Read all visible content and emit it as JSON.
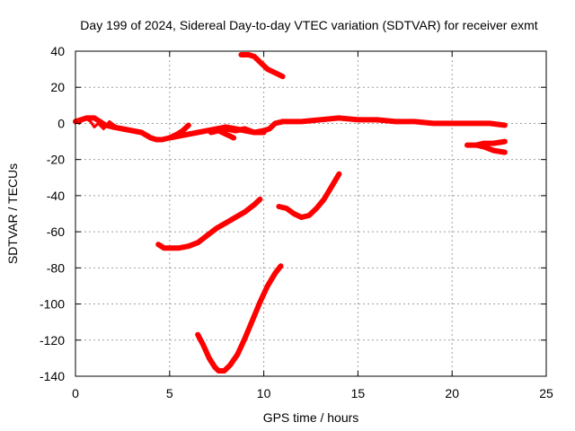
{
  "chart_data": {
    "type": "line",
    "title": "Day 199 of 2024, Sidereal Day-to-day VTEC variation (SDTVAR) for receiver exmt",
    "xlabel": "GPS time / hours",
    "ylabel": "SDTVAR / TECUs",
    "xlim": [
      0,
      25
    ],
    "ylim": [
      -140,
      40
    ],
    "xticks": [
      0,
      5,
      10,
      15,
      20,
      25
    ],
    "yticks": [
      -140,
      -120,
      -100,
      -80,
      -60,
      -40,
      -20,
      0,
      20,
      40
    ],
    "grid": true,
    "color": "#ff0000",
    "series": [
      {
        "name": "near-zero track (start)",
        "points": [
          [
            0.0,
            1
          ],
          [
            0.3,
            2
          ],
          [
            0.6,
            3
          ],
          [
            1.0,
            3
          ],
          [
            1.3,
            1
          ],
          [
            1.6,
            -1
          ],
          [
            2.0,
            -2
          ],
          [
            2.5,
            -3
          ],
          [
            3.0,
            -4
          ],
          [
            3.5,
            -5
          ],
          [
            4.0,
            -8
          ],
          [
            4.3,
            -9
          ],
          [
            4.6,
            -9
          ],
          [
            5.0,
            -8
          ],
          [
            5.5,
            -7
          ],
          [
            6.0,
            -6
          ],
          [
            6.5,
            -5
          ],
          [
            7.0,
            -4
          ],
          [
            7.5,
            -3
          ],
          [
            8.0,
            -2
          ],
          [
            8.5,
            -3
          ],
          [
            9.0,
            -4
          ],
          [
            9.5,
            -5
          ],
          [
            10.0,
            -4
          ],
          [
            10.3,
            -3
          ],
          [
            10.6,
            0
          ],
          [
            11.0,
            1
          ]
        ]
      },
      {
        "name": "near-zero track (continued)",
        "points": [
          [
            11.0,
            1
          ],
          [
            12.0,
            1
          ],
          [
            13.0,
            2
          ],
          [
            14.0,
            3
          ],
          [
            15.0,
            2
          ],
          [
            16.0,
            2
          ],
          [
            17.0,
            1
          ],
          [
            18.0,
            1
          ],
          [
            19.0,
            0
          ],
          [
            20.0,
            0
          ],
          [
            21.0,
            0
          ],
          [
            22.0,
            0
          ],
          [
            22.8,
            -1
          ]
        ]
      },
      {
        "name": "near-zero track (thin, 0-3h)",
        "points": [
          [
            0.2,
            0
          ],
          [
            0.5,
            3
          ],
          [
            0.8,
            1
          ],
          [
            1.0,
            -2
          ],
          [
            1.2,
            0
          ],
          [
            1.5,
            -3
          ],
          [
            1.8,
            1
          ],
          [
            2.2,
            -2
          ],
          [
            2.6,
            -4
          ]
        ]
      },
      {
        "name": "short segment 6h",
        "points": [
          [
            5.0,
            -8
          ],
          [
            5.4,
            -6
          ],
          [
            5.7,
            -4
          ],
          [
            6.0,
            -1
          ]
        ]
      },
      {
        "name": "short segment 8h",
        "points": [
          [
            7.2,
            -5
          ],
          [
            7.6,
            -4
          ],
          [
            8.0,
            -6
          ],
          [
            8.4,
            -8
          ]
        ]
      },
      {
        "name": "short segment 8-9h",
        "points": [
          [
            8.0,
            -3
          ],
          [
            8.5,
            -4
          ],
          [
            9.0,
            -3
          ],
          [
            9.5,
            -5
          ],
          [
            10.0,
            -5
          ]
        ]
      },
      {
        "name": "top arc",
        "points": [
          [
            8.8,
            38
          ],
          [
            9.2,
            38
          ],
          [
            9.5,
            37
          ],
          [
            9.8,
            34
          ],
          [
            10.2,
            30
          ],
          [
            10.6,
            28
          ],
          [
            11.0,
            26
          ]
        ]
      },
      {
        "name": "rising arc 4-10h",
        "points": [
          [
            4.4,
            -67
          ],
          [
            4.7,
            -69
          ],
          [
            5.0,
            -69
          ],
          [
            5.5,
            -69
          ],
          [
            6.0,
            -68
          ],
          [
            6.5,
            -66
          ],
          [
            7.0,
            -62
          ],
          [
            7.5,
            -58
          ],
          [
            8.0,
            -55
          ],
          [
            8.5,
            -52
          ],
          [
            9.0,
            -49
          ],
          [
            9.5,
            -45
          ],
          [
            9.8,
            -42
          ]
        ]
      },
      {
        "name": "dip arc 11-14h",
        "points": [
          [
            10.8,
            -46
          ],
          [
            11.2,
            -47
          ],
          [
            11.6,
            -50
          ],
          [
            12.0,
            -52
          ],
          [
            12.4,
            -51
          ],
          [
            12.8,
            -47
          ],
          [
            13.2,
            -42
          ],
          [
            13.6,
            -35
          ],
          [
            14.0,
            -28
          ]
        ]
      },
      {
        "name": "deep V",
        "points": [
          [
            6.5,
            -117
          ],
          [
            6.8,
            -123
          ],
          [
            7.1,
            -130
          ],
          [
            7.4,
            -135
          ],
          [
            7.6,
            -137
          ],
          [
            7.9,
            -137
          ],
          [
            8.2,
            -134
          ],
          [
            8.6,
            -128
          ],
          [
            9.0,
            -119
          ],
          [
            9.4,
            -109
          ],
          [
            9.8,
            -99
          ],
          [
            10.2,
            -90
          ],
          [
            10.6,
            -83
          ],
          [
            10.9,
            -79
          ]
        ]
      },
      {
        "name": "right branch upper",
        "points": [
          [
            20.8,
            -12
          ],
          [
            21.3,
            -12
          ],
          [
            21.7,
            -11
          ],
          [
            22.2,
            -11
          ],
          [
            22.8,
            -10
          ]
        ]
      },
      {
        "name": "right branch lower",
        "points": [
          [
            21.3,
            -12
          ],
          [
            21.7,
            -13
          ],
          [
            22.2,
            -15
          ],
          [
            22.8,
            -16
          ]
        ]
      }
    ]
  }
}
